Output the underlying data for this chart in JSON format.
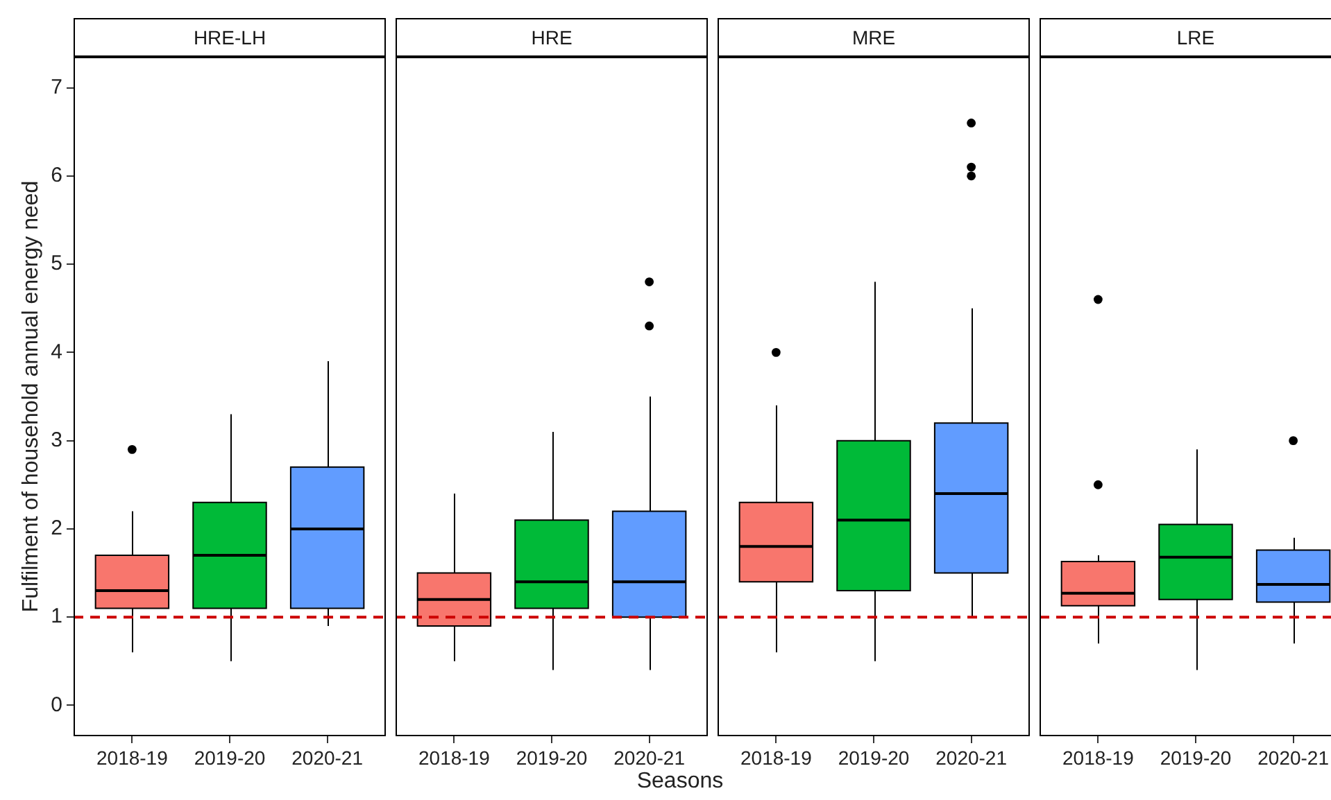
{
  "chart_data": [
    {
      "type": "box",
      "title": "HRE-LH",
      "ylabel": "Fulfilment of household annual energy need",
      "categories": [
        "2018-19",
        "2019-20",
        "2020-21"
      ],
      "colors": [
        "#f8766d",
        "#00ba38",
        "#619cff"
      ],
      "boxes": [
        {
          "low": 0.6,
          "q1": 1.1,
          "median": 1.3,
          "q3": 1.7,
          "high": 2.2,
          "outliers": [
            2.9
          ]
        },
        {
          "low": 0.5,
          "q1": 1.1,
          "median": 1.7,
          "q3": 2.3,
          "high": 3.3
        },
        {
          "low": 0.9,
          "q1": 1.1,
          "median": 2.0,
          "q3": 2.7,
          "high": 3.9
        }
      ],
      "ylim": [
        -0.35,
        7.35
      ],
      "yticks": [
        0,
        1,
        2,
        3,
        4,
        5,
        6,
        7
      ],
      "ref_lines": [
        {
          "axis": "y",
          "value": 1,
          "color": "#cc0000",
          "line_style": "dashed"
        }
      ]
    },
    {
      "type": "box",
      "title": "HRE",
      "xlabel": "Seasons",
      "categories": [
        "2018-19",
        "2019-20",
        "2020-21"
      ],
      "colors": [
        "#f8766d",
        "#00ba38",
        "#619cff"
      ],
      "boxes": [
        {
          "low": 0.5,
          "q1": 0.9,
          "median": 1.2,
          "q3": 1.5,
          "high": 2.4
        },
        {
          "low": 0.4,
          "q1": 1.1,
          "median": 1.4,
          "q3": 2.1,
          "high": 3.1
        },
        {
          "low": 0.4,
          "q1": 1.0,
          "median": 1.4,
          "q3": 2.2,
          "high": 3.5,
          "outliers": [
            4.3,
            4.8
          ]
        }
      ],
      "ylim": [
        -0.35,
        7.35
      ],
      "tick_labels": "x",
      "ref_lines": [
        {
          "axis": "y",
          "value": 1,
          "color": "#cc0000",
          "line_style": "dashed"
        }
      ]
    },
    {
      "type": "box",
      "title": "MRE",
      "categories": [
        "2018-19",
        "2019-20",
        "2020-21"
      ],
      "colors": [
        "#f8766d",
        "#00ba38",
        "#619cff"
      ],
      "boxes": [
        {
          "low": 0.6,
          "q1": 1.4,
          "median": 1.8,
          "q3": 2.3,
          "high": 3.4,
          "outliers": [
            4.0
          ]
        },
        {
          "low": 0.5,
          "q1": 1.3,
          "median": 2.1,
          "q3": 3.0,
          "high": 4.8
        },
        {
          "low": 1.0,
          "q1": 1.5,
          "median": 2.4,
          "q3": 3.2,
          "high": 4.5,
          "outliers": [
            6.0,
            6.1,
            6.6
          ]
        }
      ],
      "ylim": [
        -0.35,
        7.35
      ],
      "tick_labels": "x",
      "ref_lines": [
        {
          "axis": "y",
          "value": 1,
          "color": "#cc0000",
          "line_style": "dashed"
        }
      ]
    },
    {
      "type": "box",
      "title": "LRE",
      "categories": [
        "2018-19",
        "2019-20",
        "2020-21"
      ],
      "colors": [
        "#f8766d",
        "#00ba38",
        "#619cff"
      ],
      "boxes": [
        {
          "low": 0.7,
          "q1": 1.13,
          "median": 1.27,
          "q3": 1.63,
          "high": 1.7,
          "outliers": [
            2.5,
            4.6
          ]
        },
        {
          "low": 0.4,
          "q1": 1.2,
          "median": 1.68,
          "q3": 2.05,
          "high": 2.9
        },
        {
          "low": 0.7,
          "q1": 1.17,
          "median": 1.37,
          "q3": 1.76,
          "high": 1.9,
          "outliers": [
            3.0
          ]
        }
      ],
      "ylim": [
        -0.35,
        7.35
      ],
      "tick_labels": "x",
      "ref_lines": [
        {
          "axis": "y",
          "value": 1,
          "color": "#cc0000",
          "line_style": "dashed"
        }
      ]
    }
  ]
}
